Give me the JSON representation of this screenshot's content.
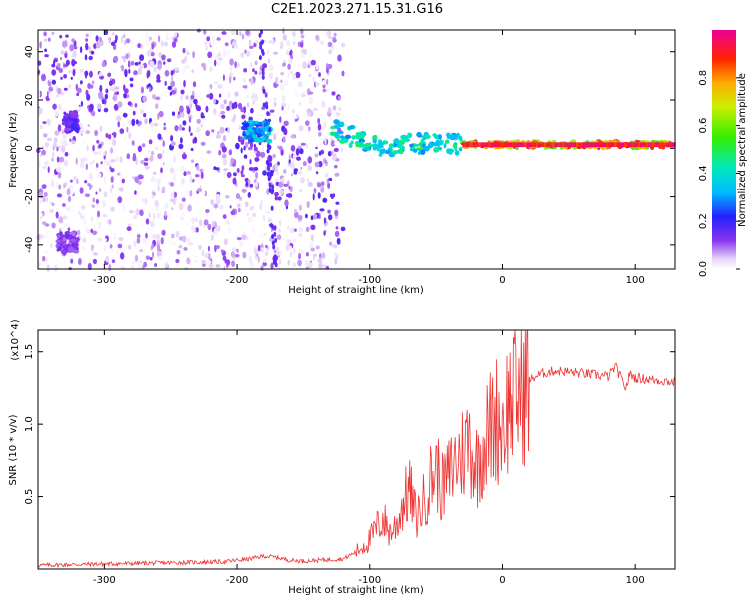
{
  "title": "C2E1.2023.271.15.31.G16",
  "chart_data": [
    {
      "type": "heatmap",
      "xlabel": "Height of straight line (km)",
      "ylabel": "Frequency (Hz)",
      "xlim": [
        -350,
        130
      ],
      "ylim": [
        -50,
        49
      ],
      "x_ticks": [
        "-300",
        "-200",
        "-100",
        "0",
        "100"
      ],
      "x_tick_values": [
        -300,
        -200,
        -100,
        0,
        100
      ],
      "y_ticks": [
        "-40",
        "-20",
        "0",
        "20",
        "40"
      ],
      "y_tick_values": [
        -40,
        -20,
        0,
        20,
        40
      ],
      "colorbar": {
        "label": "Normalized spectral amplitude",
        "range": [
          0,
          1
        ],
        "ticks": [
          "0.0",
          "0.2",
          "0.4",
          "0.6",
          "0.8"
        ],
        "tick_values": [
          0.0,
          0.2,
          0.4,
          0.6,
          0.8
        ],
        "colormap": "rainbow (white, purple, blue, cyan, green, yellow, red, magenta)"
      },
      "features": [
        {
          "x_range": [
            -350,
            -120
          ],
          "y_range": [
            -50,
            49
          ],
          "amplitude": 0.1,
          "kind": "diffuse scatter"
        },
        {
          "x_range": [
            -330,
            -320
          ],
          "y_center": 11,
          "amplitude": 0.2
        },
        {
          "x_range": [
            -335,
            -320
          ],
          "y_center": -39,
          "amplitude": 0.15
        },
        {
          "x_range": [
            -195,
            -175
          ],
          "y_center": 7,
          "amplitude": 0.4
        },
        {
          "x_range": [
            -130,
            -80
          ],
          "y_center": 3,
          "amplitude": 0.5,
          "kind": "descending blobs"
        },
        {
          "x_range": [
            -80,
            -30
          ],
          "y_center": 2,
          "amplitude": 0.5
        },
        {
          "x_range": [
            -30,
            130
          ],
          "y_center": 1.5,
          "amplitude": 0.95,
          "kind": "narrow band"
        }
      ]
    },
    {
      "type": "line",
      "xlabel": "Height of straight line (km)",
      "ylabel": "SNR (10 * v/v)",
      "y_multiplier": "(x10^4)",
      "xlim": [
        -350,
        130
      ],
      "ylim": [
        0,
        16500
      ],
      "x_ticks": [
        "-300",
        "-200",
        "-100",
        "0",
        "100"
      ],
      "x_tick_values": [
        -300,
        -200,
        -100,
        0,
        100
      ],
      "y_ticks": [
        "0.5",
        "1.0",
        "1.5"
      ],
      "y_tick_values": [
        5000,
        10000,
        15000
      ],
      "color": "#ee3333",
      "series": [
        {
          "x": [
            -350,
            -330,
            -300,
            -270,
            -240,
            -210,
            -190,
            -180,
            -170,
            -160,
            -150,
            -140,
            -130,
            -120,
            -110,
            -100,
            -95,
            -90,
            -85,
            -80,
            -75,
            -70,
            -65,
            -60,
            -55,
            -50,
            -45,
            -40,
            -35,
            -30,
            -25,
            -20,
            -15,
            -10,
            -5,
            0,
            5,
            10,
            15,
            20,
            25,
            30,
            35,
            40,
            50,
            60,
            70,
            80,
            85,
            90,
            93,
            96,
            100,
            110,
            120,
            130
          ],
          "y": [
            250,
            300,
            350,
            400,
            450,
            500,
            700,
            900,
            800,
            600,
            550,
            600,
            650,
            700,
            1200,
            2000,
            2800,
            3500,
            2500,
            3000,
            4500,
            5500,
            3500,
            4500,
            6000,
            7000,
            5500,
            6500,
            7500,
            8000,
            9000,
            7000,
            8500,
            9500,
            10500,
            10000,
            11500,
            12000,
            12500,
            13000,
            13300,
            13500,
            13600,
            13700,
            13600,
            13500,
            13400,
            13300,
            14000,
            13000,
            12500,
            13500,
            13200,
            13100,
            13000,
            12900
          ]
        }
      ]
    }
  ]
}
